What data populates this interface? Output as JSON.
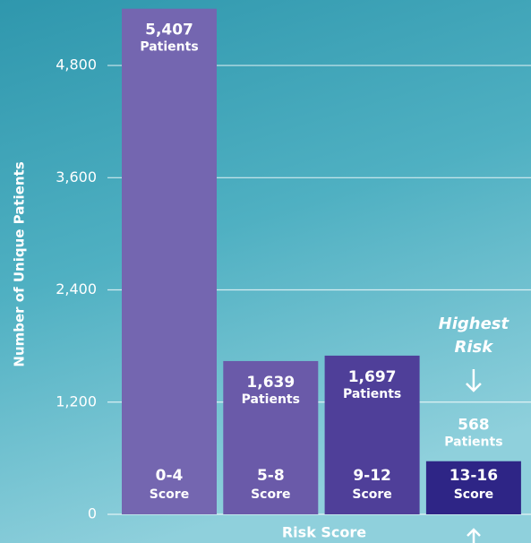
{
  "chart_data": {
    "type": "bar",
    "y_label": "Number of Unique Patients",
    "x_label": "Risk Score",
    "categories": [
      "0-4",
      "5-8",
      "9-12",
      "13-16"
    ],
    "category_unit": "Score",
    "values": [
      5407,
      1639,
      1697,
      568
    ],
    "value_labels": [
      "5,407",
      "1,639",
      "1,697",
      "568"
    ],
    "value_label_unit": "Patients",
    "colors": [
      "#7466b0",
      "#6a5aa9",
      "#4f3f99",
      "#2e2586"
    ],
    "annotation": {
      "lines": [
        "Highest",
        "Risk"
      ],
      "category_index": 3
    },
    "ylim": [
      0,
      5500
    ],
    "yticks": [
      0,
      {
        "value": 1200,
        "label": "1,200"
      },
      {
        "value": 2400,
        "label": "2,400"
      },
      {
        "value": 3600,
        "label": "3,600"
      },
      {
        "value": 4800,
        "label": "4,800"
      }
    ],
    "grid": true
  }
}
